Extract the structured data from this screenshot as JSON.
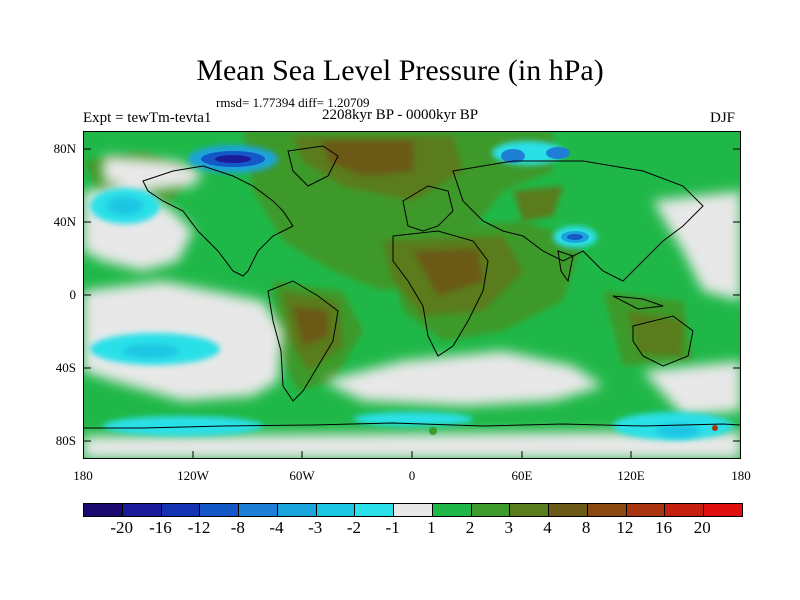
{
  "title": "Mean Sea Level Pressure (in hPa)",
  "stats": "rmsd= 1.77394 diff= 1.20709",
  "subtitle": "2208kyr BP - 0000kyr BP",
  "experiment": "Expt = tewTm-tevta1",
  "season": "DJF",
  "axes": {
    "lat_ticks": [
      "80N",
      "40N",
      "0",
      "40S",
      "80S"
    ],
    "lon_ticks": [
      "180",
      "120W",
      "60W",
      "0",
      "60E",
      "120E",
      "180"
    ]
  },
  "colorbar": {
    "labels": [
      "-20",
      "-16",
      "-12",
      "-8",
      "-4",
      "-3",
      "-2",
      "-1",
      "1",
      "2",
      "3",
      "4",
      "8",
      "12",
      "16",
      "20"
    ],
    "colors": [
      "#1a0a6e",
      "#1c1c9a",
      "#1433b3",
      "#1457c6",
      "#1f7fd6",
      "#1ba3dc",
      "#1cc6e3",
      "#2be0e8",
      "#e8e8e8",
      "#1fb848",
      "#3d9a2c",
      "#5a7c1e",
      "#6b5a17",
      "#8a4a12",
      "#a83410",
      "#c42010",
      "#e01010"
    ]
  }
}
